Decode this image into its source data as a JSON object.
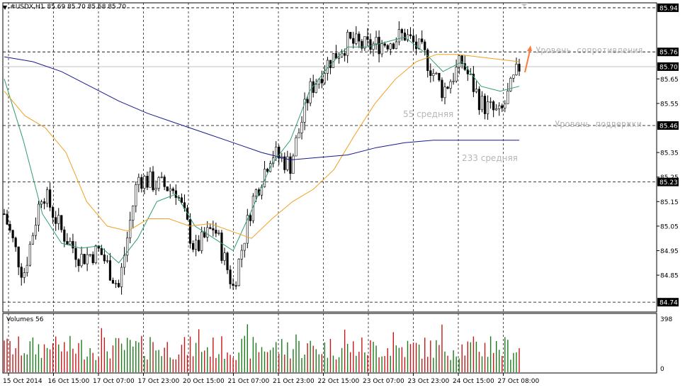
{
  "header": {
    "symbol": "#USDX,H1",
    "ohlc": "85.69 85.70 85.68 85.70"
  },
  "volume_panel": {
    "title": "Volumes 56",
    "max_label": "398",
    "zero_label": "0"
  },
  "annotations": {
    "resistance": "Уровень сопротивления",
    "support": "Уровень поддержки",
    "ma55": "55 средняя",
    "ma233": "233 средняя"
  },
  "colors": {
    "bull": "#1b7a1b",
    "bear": "#c41818",
    "ma_fast": "#2e9e6a",
    "ma55": "#f0a020",
    "ma233": "#1a1a8c",
    "arrow": "#ff7a3a",
    "annotation": "#b6b6b6"
  },
  "chart_data": {
    "type": "candlestick",
    "ylim": [
      84.7,
      85.96
    ],
    "y_ticks": [
      "85.94",
      "85.76",
      "85.70",
      "85.65",
      "85.55",
      "85.46",
      "85.35",
      "85.25",
      "85.23",
      "85.15",
      "85.05",
      "84.95",
      "84.85",
      "84.74"
    ],
    "price_boxes": [
      "85.94",
      "85.76",
      "85.70",
      "85.46",
      "85.23",
      "84.74"
    ],
    "levels": [
      {
        "name": "85.94",
        "value": 85.94
      },
      {
        "name": "85.76",
        "value": 85.76
      },
      {
        "name": "85.46",
        "value": 85.46
      },
      {
        "name": "85.23",
        "value": 85.23
      },
      {
        "name": "84.74",
        "value": 84.74
      }
    ],
    "current_price": 85.7,
    "x_labels": [
      "15 Oct 2014",
      "16 Oct 15:00",
      "17 Oct 07:00",
      "17 Oct 23:00",
      "20 Oct 15:00",
      "21 Oct 07:00",
      "21 Oct 23:00",
      "22 Oct 15:00",
      "23 Oct 07:00",
      "23 Oct 23:00",
      "24 Oct 15:00",
      "27 Oct 08:00"
    ],
    "close_anchors": [
      85.1,
      84.85,
      85.2,
      85.03,
      84.92,
      84.95,
      84.8,
      85.25,
      85.22,
      85.2,
      84.95,
      85.05,
      84.8,
      85.15,
      85.35,
      85.3,
      85.6,
      85.72,
      85.8,
      85.78,
      85.8,
      85.83,
      85.75,
      85.6,
      85.72,
      85.55,
      85.5,
      85.7
    ],
    "ma_fast": [
      85.65,
      85.4,
      85.1,
      84.98,
      84.96,
      84.97,
      84.9,
      85.0,
      85.15,
      85.18,
      85.05,
      85.0,
      84.95,
      85.12,
      85.3,
      85.4,
      85.6,
      85.7,
      85.78,
      85.78,
      85.8,
      85.82,
      85.76,
      85.68,
      85.72,
      85.62,
      85.6,
      85.62
    ],
    "ma55": [
      85.6,
      85.5,
      85.45,
      85.35,
      85.15,
      85.05,
      85.03,
      85.08,
      85.08,
      85.05,
      85.06,
      85.03,
      85.0,
      85.08,
      85.15,
      85.2,
      85.28,
      85.42,
      85.55,
      85.65,
      85.72,
      85.75,
      85.75,
      85.74,
      85.73,
      85.72
    ],
    "ma233": [
      85.74,
      85.72,
      85.68,
      85.62,
      85.56,
      85.51,
      85.47,
      85.43,
      85.39,
      85.35,
      85.32,
      85.33,
      85.34,
      85.37,
      85.39,
      85.4,
      85.4,
      85.4,
      85.4
    ],
    "volume_range": [
      0,
      398
    ]
  }
}
